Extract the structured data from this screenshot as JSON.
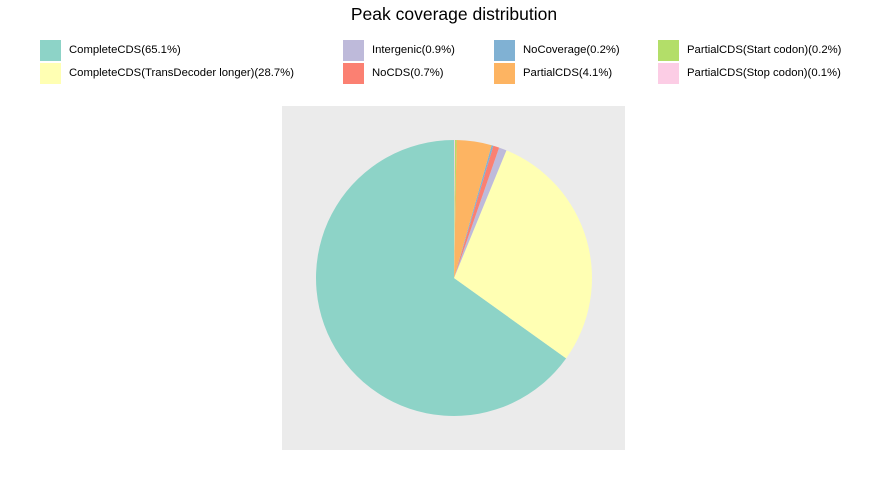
{
  "chart_data": {
    "type": "pie",
    "title": "Peak coverage distribution",
    "start_angle_deg": 0,
    "direction": "counterclockwise",
    "legend_position": "top",
    "slices": [
      {
        "label": "CompleteCDS(65.1%)",
        "value": 65.1,
        "color": "#8dd3c7"
      },
      {
        "label": "CompleteCDS(TransDecoder longer)(28.7%)",
        "value": 28.7,
        "color": "#ffffb3"
      },
      {
        "label": "Intergenic(0.9%)",
        "value": 0.9,
        "color": "#bebada"
      },
      {
        "label": "NoCDS(0.7%)",
        "value": 0.7,
        "color": "#fb8072"
      },
      {
        "label": "NoCoverage(0.2%)",
        "value": 0.2,
        "color": "#80b1d3"
      },
      {
        "label": "PartialCDS(4.1%)",
        "value": 4.1,
        "color": "#fdb462"
      },
      {
        "label": "PartialCDS(Start codon)(0.2%)",
        "value": 0.2,
        "color": "#b3de69"
      },
      {
        "label": "PartialCDS(Stop codon)(0.1%)",
        "value": 0.1,
        "color": "#fccde5"
      }
    ]
  }
}
